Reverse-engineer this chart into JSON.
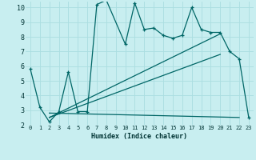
{
  "xlabel": "Humidex (Indice chaleur)",
  "background_color": "#c8eef0",
  "line_color": "#006666",
  "grid_color": "#aadde0",
  "xlim": [
    -0.5,
    23.5
  ],
  "ylim": [
    2,
    10.4
  ],
  "yticks": [
    2,
    3,
    4,
    5,
    6,
    7,
    8,
    9,
    10
  ],
  "xticks": [
    0,
    1,
    2,
    3,
    4,
    5,
    6,
    7,
    8,
    9,
    10,
    11,
    12,
    13,
    14,
    15,
    16,
    17,
    18,
    19,
    20,
    21,
    22,
    23
  ],
  "line1_x": [
    0,
    1,
    2,
    3,
    4,
    5,
    6,
    7,
    8,
    10,
    11,
    12,
    13,
    14,
    15,
    16,
    17,
    18,
    19,
    20,
    21,
    22,
    23
  ],
  "line1_y": [
    5.8,
    3.2,
    2.2,
    2.9,
    5.6,
    2.9,
    2.9,
    10.2,
    10.5,
    7.5,
    10.3,
    8.5,
    8.6,
    8.1,
    7.9,
    8.1,
    10.0,
    8.5,
    8.3,
    8.3,
    7.0,
    6.5,
    2.5
  ],
  "line2_x": [
    2,
    20
  ],
  "line2_y": [
    2.5,
    8.2
  ],
  "line3_x": [
    2,
    20
  ],
  "line3_y": [
    2.5,
    6.8
  ],
  "line4_x": [
    2,
    22
  ],
  "line4_y": [
    2.8,
    2.5
  ]
}
